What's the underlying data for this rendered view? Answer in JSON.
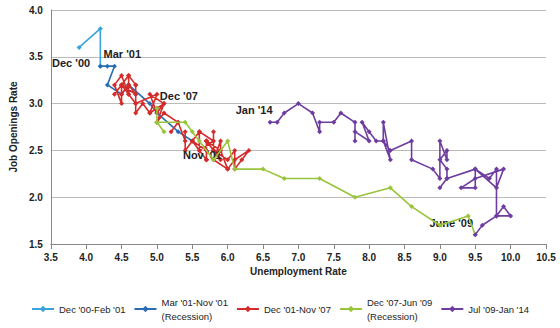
{
  "chart_data": {
    "type": "line",
    "x_label": "Unemployment Rate",
    "y_label": "Job Openings Rate",
    "xlim": [
      3.5,
      10.5
    ],
    "xticks": [
      3.5,
      {
        "value": 4,
        "label": "4.0"
      },
      4.5,
      {
        "value": 5,
        "label": "5.0"
      },
      5.5,
      {
        "value": 6,
        "label": "6.0"
      },
      6.5,
      {
        "value": 7,
        "label": "7.0"
      },
      7.5,
      {
        "value": 8,
        "label": "8.0"
      },
      8.5,
      {
        "value": 9,
        "label": "9.0"
      },
      9.5,
      {
        "value": 10,
        "label": "10.0"
      },
      10.5
    ],
    "ylim": [
      1.5,
      4
    ],
    "yticks": [
      1.5,
      {
        "value": 2,
        "label": "2.0"
      },
      2.5,
      {
        "value": 3,
        "label": "3.0"
      },
      3.5,
      {
        "value": 4,
        "label": "4.0"
      }
    ],
    "grid": true,
    "legend": "bottom",
    "marker": "diamond",
    "series": [
      {
        "name": "Dec '00-Feb '01",
        "color": "#3ba3dc",
        "x": [
          3.9,
          4.2,
          4.2
        ],
        "values": [
          3.6,
          3.8,
          3.4
        ]
      },
      {
        "name": "Mar '01-Nov '01",
        "color": "#2a6db5",
        "note": "(Recession)",
        "x": [
          4.2,
          4.3,
          4.4,
          4.3,
          4.5,
          4.6,
          4.9,
          5.0,
          5.3,
          5.5
        ],
        "values": [
          3.4,
          3.4,
          3.4,
          3.2,
          3.1,
          3.2,
          3.0,
          2.9,
          2.7,
          2.6
        ]
      },
      {
        "name": "Dec '01-Nov '07",
        "color": "#d42b2b",
        "x": [
          5.5,
          5.7,
          5.7,
          5.7,
          5.9,
          5.8,
          5.8,
          5.8,
          5.7,
          5.7,
          5.7,
          5.9,
          6.0,
          5.8,
          5.9,
          5.9,
          6.0,
          6.1,
          6.3,
          6.2,
          6.1,
          6.1,
          6.0,
          5.8,
          5.7,
          5.7,
          5.6,
          5.8,
          5.6,
          5.6,
          5.5,
          5.6,
          5.4,
          5.4,
          5.4,
          5.3,
          5.2,
          5.3,
          5.1,
          5.0,
          5.1,
          5.0,
          4.9,
          5.1,
          4.9,
          5.0,
          4.7,
          4.7,
          4.6,
          4.6,
          4.7,
          4.5,
          4.4,
          4.6,
          4.5,
          4.5,
          4.4,
          4.5,
          4.6,
          4.5,
          4.5,
          4.6,
          4.6,
          4.7,
          4.7,
          4.7,
          4.7,
          4.8,
          4.9,
          5.0
        ],
        "values": [
          2.6,
          2.5,
          2.4,
          2.6,
          2.4,
          2.5,
          2.7,
          2.5,
          2.6,
          2.4,
          2.6,
          2.5,
          2.3,
          2.4,
          2.6,
          2.5,
          2.3,
          2.4,
          2.5,
          2.4,
          2.3,
          2.5,
          2.4,
          2.5,
          2.6,
          2.4,
          2.5,
          2.6,
          2.7,
          2.5,
          2.6,
          2.7,
          2.5,
          2.7,
          2.6,
          2.8,
          2.7,
          2.8,
          2.9,
          2.8,
          3.0,
          2.9,
          3.1,
          3.0,
          2.9,
          3.1,
          3.0,
          3.2,
          3.3,
          3.2,
          3.1,
          3.2,
          3.1,
          3.3,
          3.2,
          3.0,
          3.2,
          3.3,
          3.1,
          3.2,
          3.1,
          3.2,
          3.1,
          3.0,
          3.2,
          3.1,
          2.9,
          3.0,
          2.9,
          2.95
        ]
      },
      {
        "name": "Dec '07-Jun '09",
        "color": "#99c43c",
        "note": "(Recession)",
        "x": [
          5.0,
          5.0,
          5.1,
          5.0,
          5.0,
          5.4,
          5.5,
          5.6,
          5.8,
          6.0,
          6.1,
          6.5,
          6.8,
          7.3,
          7.8,
          8.3,
          8.6,
          9.0,
          9.4,
          9.5
        ],
        "values": [
          2.95,
          2.8,
          2.7,
          2.8,
          2.8,
          2.8,
          2.7,
          2.6,
          2.4,
          2.6,
          2.3,
          2.3,
          2.2,
          2.2,
          2.0,
          2.1,
          1.9,
          1.7,
          1.8,
          1.6
        ]
      },
      {
        "name": "Jul '09-Jan '14",
        "color": "#6e3d9f",
        "x": [
          9.5,
          9.6,
          9.8,
          10.0,
          9.9,
          9.8,
          9.8,
          9.7,
          9.5,
          9.8,
          9.9,
          9.5,
          9.3,
          9.5,
          9.5,
          9.1,
          9.0,
          9.1,
          9.1,
          9.0,
          9.1,
          9.1,
          9.0,
          9.0,
          8.9,
          8.6,
          8.6,
          8.3,
          8.2,
          8.3,
          8.2,
          8.2,
          8.1,
          8.0,
          7.9,
          8.0,
          7.8,
          7.8,
          7.8,
          7.6,
          7.5,
          7.3,
          7.3,
          7.2,
          7.0,
          6.8,
          6.7,
          6.6
        ],
        "values": [
          1.6,
          1.7,
          1.8,
          1.8,
          1.9,
          1.8,
          2.3,
          2.2,
          2.3,
          2.1,
          2.3,
          2.2,
          2.1,
          2.1,
          2.3,
          2.2,
          2.1,
          2.2,
          2.3,
          2.4,
          2.5,
          2.4,
          2.6,
          2.2,
          2.3,
          2.4,
          2.6,
          2.5,
          2.6,
          2.4,
          2.8,
          2.6,
          2.6,
          2.7,
          2.8,
          2.6,
          2.7,
          2.6,
          2.8,
          2.9,
          2.8,
          2.8,
          2.7,
          2.9,
          3.0,
          2.9,
          2.8,
          2.8
        ]
      }
    ],
    "annotations": [
      {
        "text": "Dec '00",
        "x": 3.9,
        "y": 3.6
      },
      {
        "text": "Mar '01",
        "x": 4.2,
        "y": 3.4
      },
      {
        "text": "Dec '07",
        "x": 5.0,
        "y": 2.95
      },
      {
        "text": "Nov '01",
        "x": 5.5,
        "y": 2.6
      },
      {
        "text": "Jan '14",
        "x": 6.6,
        "y": 2.8
      },
      {
        "text": "June '09",
        "x": 9.5,
        "y": 1.6
      }
    ]
  }
}
